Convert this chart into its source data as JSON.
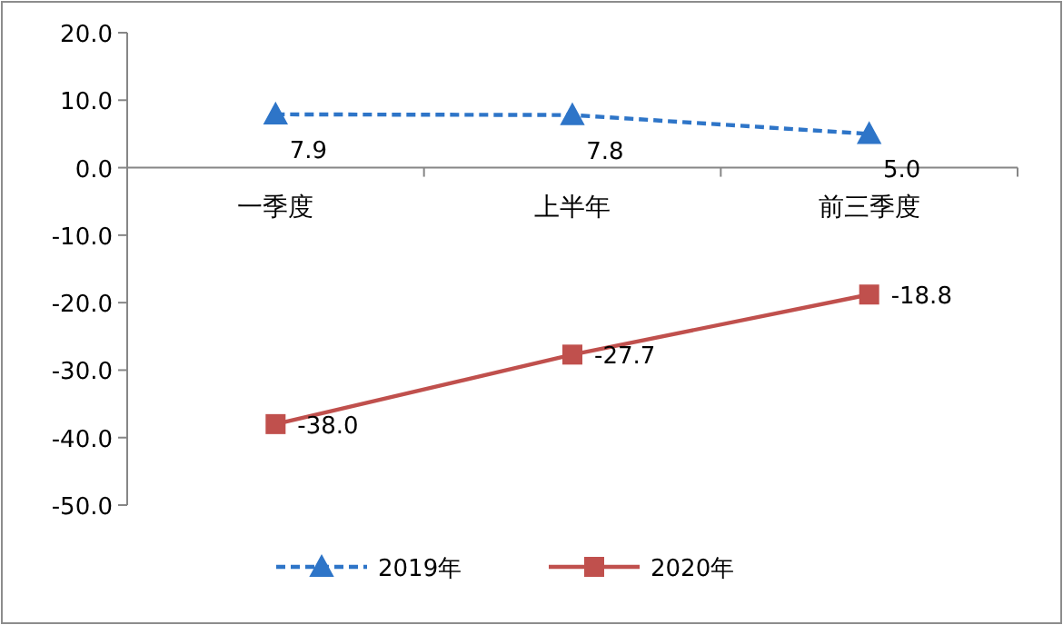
{
  "chart_data": {
    "type": "line",
    "categories": [
      "一季度",
      "上半年",
      "前三季度"
    ],
    "series": [
      {
        "name": "2019年",
        "color": "#2e75c8",
        "values": [
          7.9,
          7.8,
          5.0
        ],
        "value_labels": [
          "7.9",
          "7.8",
          "5.0"
        ],
        "marker": "triangle",
        "line_style": "dashed"
      },
      {
        "name": "2020年",
        "color": "#c0504d",
        "values": [
          -38.0,
          -27.7,
          -18.8
        ],
        "value_labels": [
          "-38.0",
          "-27.7",
          "-18.8"
        ],
        "marker": "square",
        "line_style": "solid"
      }
    ],
    "ylim": [
      -50,
      20
    ],
    "yticks": [
      {
        "value": 20,
        "label": "20.0"
      },
      {
        "value": 10,
        "label": "10.0"
      },
      {
        "value": 0,
        "label": "0.0"
      },
      {
        "value": -10,
        "label": "-10.0"
      },
      {
        "value": -20,
        "label": "-20.0"
      },
      {
        "value": -30,
        "label": "-30.0"
      },
      {
        "value": -40,
        "label": "-40.0"
      },
      {
        "value": -50,
        "label": "-50.0"
      }
    ],
    "grid": false,
    "legend": "bottom"
  }
}
